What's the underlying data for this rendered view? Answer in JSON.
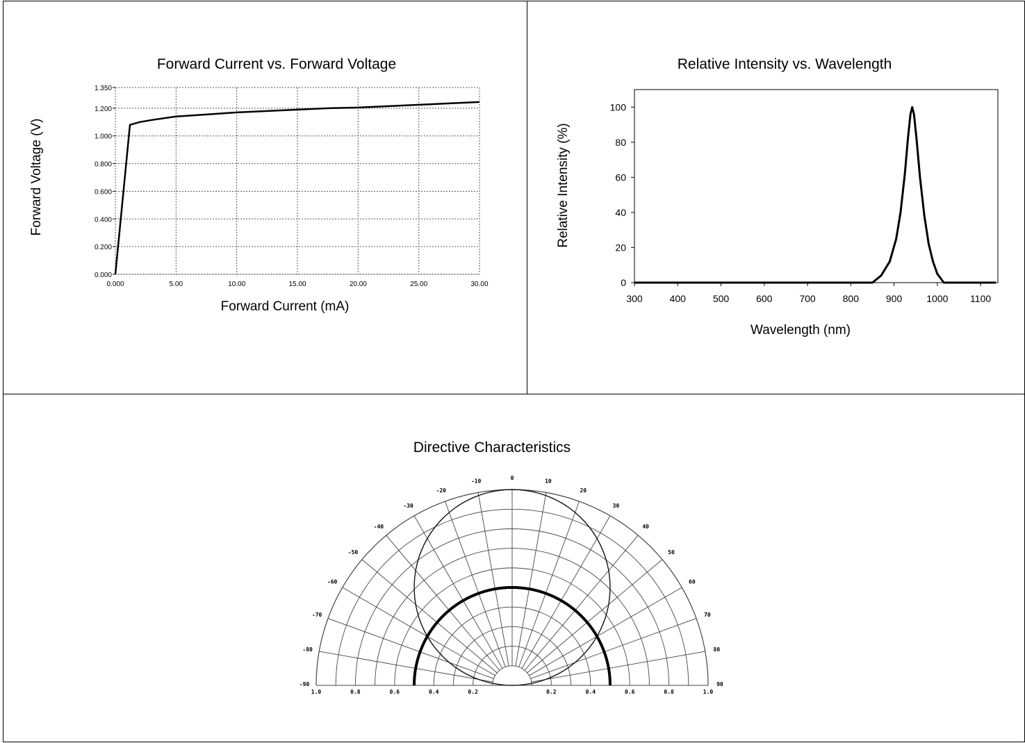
{
  "chart_data": [
    {
      "type": "line",
      "title": "Forward Current vs. Forward Voltage",
      "xlabel": "Forward Current (mA)",
      "ylabel": "Forward Voltage (V)",
      "xlim": [
        0,
        30
      ],
      "ylim": [
        0,
        1.35
      ],
      "grid": true,
      "x_ticks": [
        "0.000",
        "5.00",
        "10.00",
        "15.00",
        "20.00",
        "25.00",
        "30.00"
      ],
      "y_ticks": [
        "0.000",
        "0.200",
        "0.400",
        "0.600",
        "0.800",
        "1.000",
        "1.200",
        "1.350"
      ],
      "series": [
        {
          "x": [
            0,
            1.2,
            2,
            3,
            5,
            7.5,
            10,
            12.5,
            15,
            17.5,
            20,
            22.5,
            25,
            27.5,
            30
          ],
          "y": [
            0,
            1.08,
            1.1,
            1.115,
            1.14,
            1.155,
            1.17,
            1.18,
            1.19,
            1.2,
            1.205,
            1.215,
            1.225,
            1.235,
            1.245
          ]
        }
      ]
    },
    {
      "type": "line",
      "title": "Relative Intensity vs. Wavelength",
      "xlabel": "Wavelength (nm)",
      "ylabel": "Relative Intensity (%)",
      "xlim": [
        300,
        1140
      ],
      "ylim": [
        0,
        110
      ],
      "grid": false,
      "x_ticks": [
        "300",
        "400",
        "500",
        "600",
        "700",
        "800",
        "900",
        "1000",
        "1100"
      ],
      "y_ticks": [
        "0",
        "20",
        "40",
        "60",
        "80",
        "100"
      ],
      "series": [
        {
          "x": [
            300,
            850,
            870,
            890,
            905,
            915,
            925,
            932,
            938,
            942,
            946,
            952,
            960,
            970,
            980,
            990,
            1000,
            1015,
            1040,
            1135
          ],
          "y": [
            0,
            0,
            4,
            12,
            25,
            40,
            62,
            82,
            96,
            100,
            96,
            82,
            60,
            38,
            22,
            12,
            5,
            0,
            0,
            0
          ]
        }
      ]
    },
    {
      "type": "polar",
      "title": "Directive Characteristics",
      "angle_range": [
        -90,
        90
      ],
      "radius_range": [
        0,
        1.0
      ],
      "angle_labels": [
        "-90",
        "-80",
        "-70",
        "-60",
        "-50",
        "-40",
        "-30",
        "-20",
        "-10",
        "0",
        "10",
        "20",
        "30",
        "40",
        "50",
        "60",
        "70",
        "80",
        "90"
      ],
      "radius_labels_left": [
        "1.0",
        "0.8",
        "0.6",
        "0.4",
        "0.2"
      ],
      "radius_labels_right": [
        "0.2",
        "0.4",
        "0.6",
        "0.8",
        "1.0"
      ],
      "series": [
        {
          "style": "thin",
          "angles": [
            -90,
            -60,
            -30,
            0,
            30,
            60,
            90
          ],
          "r": [
            0,
            0.5,
            0.866,
            1.0,
            0.866,
            0.5,
            0
          ]
        },
        {
          "style": "thick",
          "angles": [
            -90,
            -60,
            -30,
            0,
            30,
            60,
            90
          ],
          "r": [
            0.5,
            0.5,
            0.5,
            0.5,
            0.5,
            0.5,
            0.5
          ]
        }
      ]
    }
  ]
}
